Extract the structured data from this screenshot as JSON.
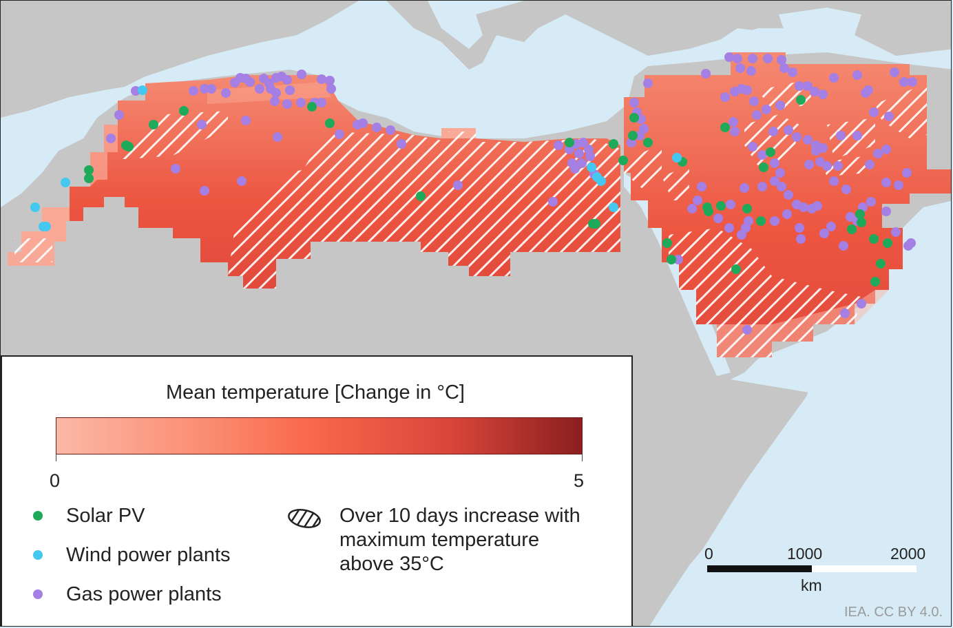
{
  "legend": {
    "title": "Mean temperature [Change in °C]",
    "scale_min": "0",
    "scale_max": "5",
    "solar_label": "Solar PV",
    "wind_label": "Wind power plants",
    "gas_label": "Gas power plants",
    "hatch_label_lines": [
      "Over 10 days increase with",
      "maximum temperature",
      "above 35°C"
    ]
  },
  "scale_bar": {
    "tick_0": "0",
    "tick_1": "1000",
    "tick_2": "2000",
    "unit": "km"
  },
  "credit": "IEA. CC BY 4.0.",
  "colors": {
    "sea": "#d6ebf5",
    "land": "#c6c6c6",
    "solar": "#1eaa5a",
    "wind": "#45c8f0",
    "gas": "#a47fe4",
    "temp_low": "#fbb8a6",
    "temp_mid": "#f9654a",
    "temp_high": "#8a1f1f"
  }
}
